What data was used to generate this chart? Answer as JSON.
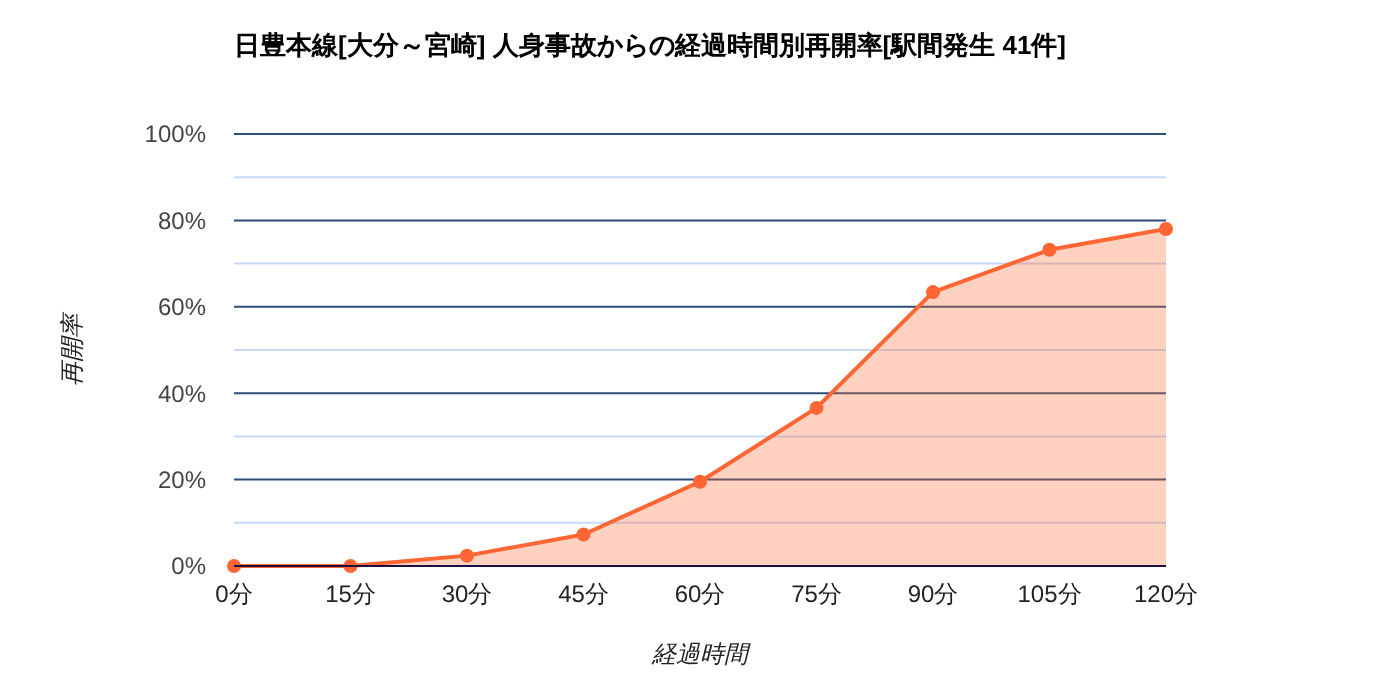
{
  "chart_data": {
    "type": "area",
    "title": "日豊本線[大分～宮崎]  人身事故からの経過時間別再開率[駅間発生 41件]",
    "xlabel": "経過時間",
    "ylabel": "再開率",
    "categories": [
      "0分",
      "15分",
      "30分",
      "45分",
      "60分",
      "75分",
      "90分",
      "105分",
      "120分"
    ],
    "series": [
      {
        "color": "#ff6633",
        "values": [
          0,
          0,
          2.4,
          7.3,
          19.5,
          36.6,
          63.4,
          73.2,
          78.0
        ]
      }
    ],
    "ylim": [
      0,
      100
    ],
    "yticks": [
      {
        "value": 0,
        "label": "0%"
      },
      {
        "value": 10,
        "label": null
      },
      {
        "value": 20,
        "label": "20%"
      },
      {
        "value": 30,
        "label": null
      },
      {
        "value": 40,
        "label": "40%"
      },
      {
        "value": 50,
        "label": null
      },
      {
        "value": 60,
        "label": "60%"
      },
      {
        "value": 70,
        "label": null
      },
      {
        "value": 80,
        "label": "80%"
      },
      {
        "value": 90,
        "label": null
      },
      {
        "value": 100,
        "label": "100%"
      }
    ],
    "grid": "y",
    "marker": "circle"
  }
}
